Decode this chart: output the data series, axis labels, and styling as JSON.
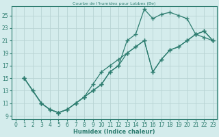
{
  "title": "Courbe de l'humidex pour Lobbes (Be)",
  "xlabel": "Humidex (Indice chaleur)",
  "xlim": [
    -0.5,
    23.5
  ],
  "ylim": [
    8.5,
    26.5
  ],
  "xticks": [
    0,
    1,
    2,
    3,
    4,
    5,
    6,
    7,
    8,
    9,
    10,
    11,
    12,
    13,
    14,
    15,
    16,
    17,
    18,
    19,
    20,
    21,
    22,
    23
  ],
  "yticks": [
    9,
    11,
    13,
    15,
    17,
    19,
    21,
    23,
    25
  ],
  "bg_color": "#d4ecec",
  "line_color": "#2e7d70",
  "grid_color": "#b8d4d4",
  "line1_x": [
    1,
    2,
    3,
    4,
    5,
    6,
    7,
    8,
    9,
    10,
    11,
    12,
    13,
    14,
    15,
    16,
    17,
    18,
    19,
    20,
    21,
    22,
    23
  ],
  "line1_y": [
    15,
    13,
    11,
    10,
    9.5,
    10,
    11,
    12,
    13,
    14,
    16,
    17,
    21,
    22,
    26,
    24.5,
    25.2,
    25.5,
    25,
    24.5,
    22,
    21.5,
    21
  ],
  "line2_x": [
    1,
    2,
    3,
    4,
    5,
    6,
    7,
    8,
    9,
    10,
    11,
    12,
    13,
    14,
    15,
    16,
    17,
    18,
    19,
    20,
    21,
    22,
    23
  ],
  "line2_y": [
    15,
    13,
    11,
    10,
    9.5,
    10,
    11,
    12,
    14,
    16,
    17,
    18,
    19,
    20,
    21,
    16,
    18,
    19.5,
    20,
    21,
    22,
    22.5,
    21
  ],
  "line3_x": [
    1,
    3,
    4,
    5,
    6,
    7,
    8,
    9,
    10,
    11,
    12,
    13,
    14,
    15,
    16,
    17,
    18,
    19,
    20,
    21,
    22,
    23
  ],
  "line3_y": [
    15,
    11,
    10,
    9.5,
    10,
    11,
    12,
    13,
    14,
    16,
    17,
    19,
    20,
    21,
    16,
    18,
    19.5,
    20,
    21,
    22,
    22.5,
    21
  ]
}
